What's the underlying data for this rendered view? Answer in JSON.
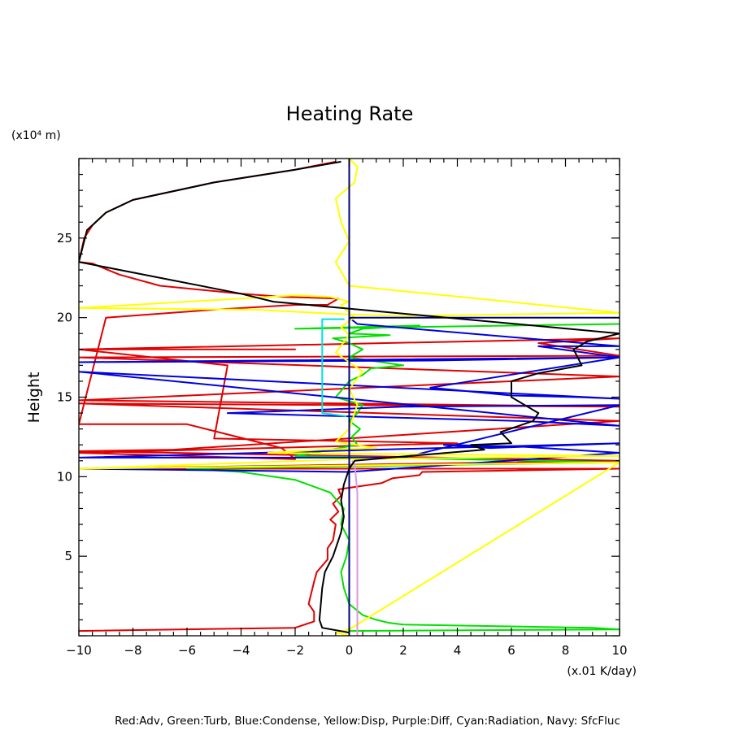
{
  "colors": {
    "adv": "#e00000",
    "turb": "#00e000",
    "condense": "#0000e0",
    "disp": "#ffff00",
    "diff": "#dd99dd",
    "radiation": "#00e0e0",
    "sfcfluc": "#000080",
    "total": "#000000",
    "axis": "#000000",
    "background": "#ffffff"
  },
  "chart_data": {
    "type": "line",
    "title": "Heating Rate",
    "xlabel": "",
    "ylabel": "Height",
    "x_unit_label": "(x.01 K/day)",
    "y_unit_label": "(x10⁴ m)",
    "xlim": [
      -10,
      10
    ],
    "ylim": [
      0,
      30
    ],
    "x_ticks": [
      "−10",
      "−8",
      "−6",
      "−4",
      "−2",
      "0",
      "2",
      "4",
      "6",
      "8",
      "10"
    ],
    "x_tick_values": [
      -10,
      -8,
      -6,
      -4,
      -2,
      0,
      2,
      4,
      6,
      8,
      10
    ],
    "y_ticks": [
      "5",
      "10",
      "15",
      "20",
      "25"
    ],
    "y_tick_values": [
      5,
      10,
      15,
      20,
      25
    ],
    "grid": false,
    "legend_text": "Red:Adv, Green:Turb, Blue:Condense, Yellow:Disp, Purple:Diff, Cyan:Radiation, Navy: SfcFluc",
    "series": [
      {
        "color_key": "adv",
        "x": [
          -10,
          -2,
          -1.3,
          -1.3,
          -1.5,
          -1.3,
          -1.2,
          -0.8,
          -0.8,
          -0.6,
          -0.5,
          -0.7,
          -0.4,
          -0.6,
          -0.3,
          -0.4,
          0,
          1.2,
          1.6,
          2.6,
          2.7,
          10,
          -10,
          10,
          -10,
          -6.5,
          10,
          -10,
          10,
          -10,
          10,
          -10,
          10,
          7,
          10,
          -10,
          -2,
          -10,
          -4.5,
          -5,
          4,
          -10,
          -2,
          -2.5,
          -6,
          -10,
          -9,
          -5,
          -2,
          -0.8,
          -0.4,
          -2.4,
          -4,
          -7,
          -8.5,
          -9.5,
          -10,
          -9.8,
          -9.5,
          -9,
          -8,
          -5,
          -2,
          -0.5
        ],
        "y": [
          0.3,
          0.5,
          0.9,
          1.5,
          2.0,
          3.4,
          4.0,
          4.8,
          5.5,
          6.0,
          7.0,
          7.3,
          7.8,
          8.3,
          8.8,
          9.2,
          9.3,
          9.6,
          9.9,
          10.1,
          10.3,
          10.5,
          10.5,
          11.0,
          11.6,
          11.7,
          13.5,
          14.6,
          14.4,
          14.8,
          16.3,
          17.5,
          17.6,
          18.4,
          18.7,
          18.0,
          18.0,
          18.0,
          17.0,
          12.4,
          12.1,
          11.5,
          11.1,
          11.8,
          13.3,
          13.3,
          20.0,
          20.5,
          20.8,
          20.8,
          21.2,
          21.3,
          21.5,
          22.0,
          22.7,
          23.4,
          23.5,
          25.0,
          25.8,
          26.6,
          27.4,
          28.5,
          29.3,
          29.8
        ]
      },
      {
        "color_key": "turb",
        "x": [
          0,
          10,
          9,
          2,
          1.5,
          1,
          0.5,
          0,
          -0.2,
          -0.3,
          -0.1,
          0,
          -0.3,
          -0.2,
          -0.7,
          -2,
          -4,
          -6,
          10,
          -2,
          0.3,
          0.1,
          0.4,
          0,
          0.3,
          0.5,
          -0.5,
          0,
          0.5,
          0.8,
          2,
          0,
          0.5,
          0,
          -0.6,
          1.5,
          0,
          0.5,
          2.6,
          -2,
          10
        ],
        "y": [
          0.3,
          0.4,
          0.5,
          0.7,
          0.8,
          1.0,
          1.3,
          2.0,
          3.0,
          4.0,
          5.0,
          6.0,
          7.0,
          8.0,
          9.0,
          9.8,
          10.3,
          10.5,
          10.9,
          11.3,
          12.0,
          12.5,
          13.0,
          13.5,
          14.0,
          14.5,
          15.0,
          16.0,
          16.4,
          16.8,
          17.0,
          17.5,
          18.0,
          18.4,
          18.7,
          18.9,
          19.0,
          19.3,
          19.5,
          19.3,
          19.6
        ]
      },
      {
        "color_key": "condense",
        "x": [
          0,
          0,
          0,
          -10,
          0,
          10,
          6.3,
          3.5,
          5.2,
          10,
          -10,
          2,
          10,
          2,
          -4.5,
          6.3,
          10,
          -10,
          10,
          8.5,
          6,
          3,
          10,
          3,
          -10,
          10,
          7,
          10,
          0.3,
          0
        ],
        "y": [
          0.2,
          9.5,
          10.3,
          10.5,
          10.3,
          11.5,
          11.9,
          12.0,
          11.8,
          12.1,
          11.2,
          11.2,
          14.5,
          14.4,
          14.0,
          13.5,
          13.2,
          16.6,
          14.9,
          15.0,
          15.1,
          15.6,
          17.5,
          17.3,
          17.2,
          17.5,
          18.2,
          18.2,
          19.6,
          20.0
        ]
      },
      {
        "color_key": "disp",
        "x": [
          0,
          -0.5,
          0,
          10,
          -10,
          0,
          10,
          -3,
          -1,
          1,
          -0.5,
          0,
          0.3,
          0,
          0.5,
          -0.5,
          0,
          -0.3,
          0,
          0.2,
          0,
          -0.3,
          0,
          -0.7,
          -2,
          -10,
          -3.5,
          0,
          2,
          10,
          0,
          -0.5,
          0,
          -0.3,
          -0.5,
          0.2,
          0.3,
          0
        ],
        "y": [
          0,
          0.2,
          0.4,
          10.9,
          10.5,
          11.1,
          11.3,
          11.5,
          11.7,
          11.8,
          12.2,
          13.0,
          14.5,
          15.5,
          16.6,
          17.8,
          18.9,
          19.4,
          19.8,
          20.0,
          20.3,
          20.8,
          21.0,
          21.3,
          21.4,
          20.6,
          20.5,
          20.2,
          20.1,
          20.3,
          22.0,
          23.5,
          24.8,
          26.0,
          27.5,
          28.5,
          29.5,
          30.0
        ]
      },
      {
        "color_key": "diff",
        "x": [
          0.3,
          0.3,
          0.3,
          0.2,
          0.1
        ],
        "y": [
          0,
          0.4,
          9.0,
          10.8,
          11.0
        ]
      },
      {
        "color_key": "radiation",
        "x": [
          -0.1,
          -1.0,
          -1.0,
          -0.2,
          -1.0,
          -1.0
        ],
        "y": [
          13.8,
          14.0,
          19.9,
          19.9,
          19.9,
          17.5
        ]
      },
      {
        "color_key": "sfcfluc",
        "x": [
          0,
          0,
          0,
          10
        ],
        "y": [
          0,
          30,
          20.0,
          20.0
        ]
      },
      {
        "color_key": "total",
        "x": [
          0,
          -1,
          -1.1,
          -1.0,
          -0.9,
          -0.6,
          -0.3,
          -0.2,
          -0.3,
          -0.2,
          0,
          0.2,
          1.5,
          5,
          4.5,
          6,
          5.6,
          6.8,
          7,
          6.5,
          6,
          6,
          7,
          8.6,
          8.3,
          8.8,
          10,
          -2.8,
          -4,
          -10,
          -9.7,
          -9,
          -8,
          -5,
          -2,
          -0.3
        ],
        "y": [
          0.2,
          0.5,
          1.0,
          3.0,
          4.0,
          5.0,
          6.5,
          7.5,
          8.5,
          9.5,
          10.5,
          11.0,
          11.2,
          11.7,
          12.0,
          12.1,
          12.8,
          13.5,
          14.0,
          14.5,
          15.0,
          16.0,
          16.5,
          17.0,
          18.0,
          18.5,
          19.0,
          21.0,
          21.5,
          23.5,
          25.5,
          26.6,
          27.4,
          28.5,
          29.3,
          29.8
        ]
      }
    ]
  }
}
